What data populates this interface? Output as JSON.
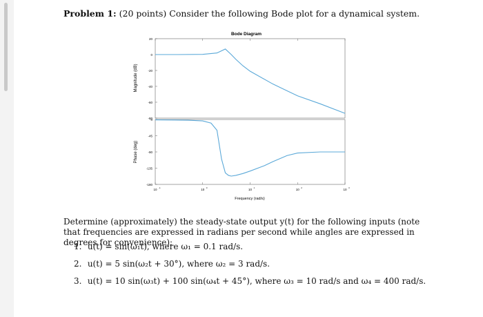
{
  "problem": {
    "label": "Problem 1:",
    "text": "(20 points) Consider the following Bode plot for a dynamical system."
  },
  "figure": {
    "title": "Bode Diagram",
    "mag_ylabel": "Magnitude (dB)",
    "phase_ylabel": "Phase (deg)",
    "xlabel": "Frequency  (rad/s)",
    "mag_ticks": [
      "20",
      "0",
      "-20",
      "-40",
      "-60",
      "-80"
    ],
    "phase_ticks": [
      "0",
      "-45",
      "-90",
      "-135",
      "-180"
    ],
    "x_tick_mantissa": [
      "10",
      "10",
      "10",
      "10",
      "10"
    ],
    "x_tick_exponents": [
      "-1",
      "0",
      "1",
      "2",
      "3"
    ],
    "line_color": "#5aa8d8"
  },
  "chart_data": [
    {
      "type": "line",
      "title": "Bode Diagram",
      "ylabel": "Magnitude (dB)",
      "xscale": "log",
      "xlim": [
        0.1,
        1000
      ],
      "ylim": [
        -80,
        20
      ],
      "yticks": [
        20,
        0,
        -20,
        -40,
        -60,
        -80
      ],
      "series": [
        {
          "x": [
            0.1,
            0.3,
            1,
            2,
            3,
            4,
            5,
            7,
            10,
            30,
            100,
            300,
            1000
          ],
          "y": [
            0,
            0,
            0.3,
            2,
            7,
            0,
            -6,
            -14,
            -21,
            -37,
            -52,
            -62,
            -74
          ]
        }
      ]
    },
    {
      "type": "line",
      "xlabel": "Frequency  (rad/s)",
      "ylabel": "Phase (deg)",
      "xscale": "log",
      "xlim": [
        0.1,
        1000
      ],
      "ylim": [
        -180,
        0
      ],
      "yticks": [
        0,
        -45,
        -90,
        -135,
        -180
      ],
      "series": [
        {
          "x": [
            0.1,
            0.5,
            1,
            1.5,
            2,
            2.5,
            3,
            3.5,
            4,
            5,
            7,
            10,
            20,
            30,
            60,
            100,
            300,
            1000
          ],
          "y": [
            -1,
            -2,
            -4,
            -10,
            -30,
            -110,
            -148,
            -155,
            -157,
            -155,
            -150,
            -143,
            -128,
            -117,
            -100,
            -93,
            -90,
            -90
          ]
        }
      ]
    }
  ],
  "para": "Determine (approximately) the steady-state output y(t) for the following inputs (note that frequencies are expressed in radians per second while angles are expressed in degrees for convenience):",
  "items": [
    {
      "num": "1.",
      "text": "u(t) = sin(ω₁t), where ω₁ = 0.1 rad/s."
    },
    {
      "num": "2.",
      "text": "u(t) = 5 sin(ω₂t + 30°), where ω₂ = 3 rad/s."
    },
    {
      "num": "3.",
      "text": "u(t) = 10 sin(ω₃t) + 100 sin(ω₄t + 45°), where ω₃ = 10 rad/s and ω₄ = 400 rad/s."
    }
  ]
}
